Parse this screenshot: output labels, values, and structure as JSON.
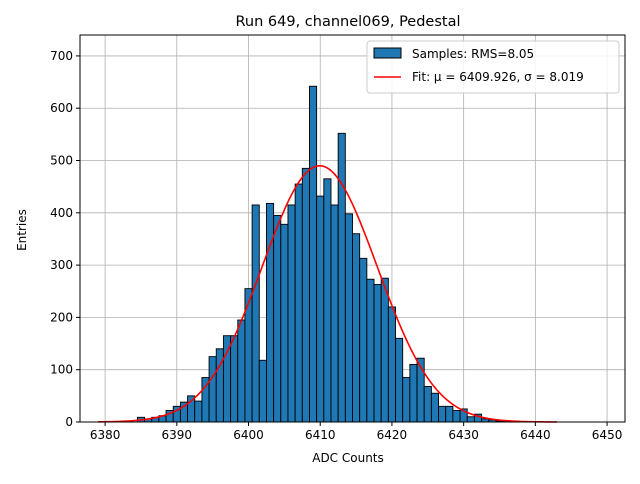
{
  "chart_data": {
    "type": "bar",
    "title": "Run 649, channel069, Pedestal",
    "xlabel": "ADC Counts",
    "ylabel": "Entries",
    "xlim": [
      6376.5,
      6452.5
    ],
    "ylim": [
      0,
      740
    ],
    "xticks": [
      6380,
      6390,
      6400,
      6410,
      6420,
      6430,
      6440,
      6450
    ],
    "yticks": [
      0,
      100,
      200,
      300,
      400,
      500,
      600,
      700
    ],
    "grid": true,
    "legend_position": "top-right",
    "series": [
      {
        "name": "Samples: RMS=8.05",
        "kind": "histogram",
        "color": "#1f77b4",
        "edgecolor": "#000000",
        "bin_width": 1,
        "bins": [
          [
            6385,
            9
          ],
          [
            6386,
            6
          ],
          [
            6387,
            9
          ],
          [
            6388,
            12
          ],
          [
            6389,
            22
          ],
          [
            6390,
            30
          ],
          [
            6391,
            38
          ],
          [
            6392,
            50
          ],
          [
            6393,
            40
          ],
          [
            6394,
            85
          ],
          [
            6395,
            125
          ],
          [
            6396,
            140
          ],
          [
            6397,
            165
          ],
          [
            6398,
            165
          ],
          [
            6399,
            195
          ],
          [
            6400,
            255
          ],
          [
            6401,
            415
          ],
          [
            6402,
            118
          ],
          [
            6403,
            418
          ],
          [
            6404,
            395
          ],
          [
            6405,
            378
          ],
          [
            6406,
            415
          ],
          [
            6407,
            455
          ],
          [
            6408,
            485
          ],
          [
            6409,
            642
          ],
          [
            6410,
            432
          ],
          [
            6411,
            465
          ],
          [
            6412,
            415
          ],
          [
            6413,
            552
          ],
          [
            6414,
            398
          ],
          [
            6415,
            360
          ],
          [
            6416,
            313
          ],
          [
            6417,
            273
          ],
          [
            6418,
            263
          ],
          [
            6419,
            275
          ],
          [
            6420,
            220
          ],
          [
            6421,
            160
          ],
          [
            6422,
            85
          ],
          [
            6423,
            110
          ],
          [
            6424,
            122
          ],
          [
            6425,
            68
          ],
          [
            6426,
            55
          ],
          [
            6427,
            30
          ],
          [
            6428,
            30
          ],
          [
            6429,
            22
          ],
          [
            6430,
            25
          ],
          [
            6431,
            10
          ],
          [
            6432,
            15
          ],
          [
            6433,
            6
          ],
          [
            6434,
            4
          ],
          [
            6435,
            2
          ],
          [
            6436,
            1
          ]
        ]
      },
      {
        "name": "Fit: μ = 6409.926, σ = 8.019",
        "kind": "gaussian",
        "color": "#ff0000",
        "mu": 6409.926,
        "sigma": 8.019,
        "amplitude": 490,
        "x_range": [
          6379,
          6443
        ]
      }
    ]
  }
}
